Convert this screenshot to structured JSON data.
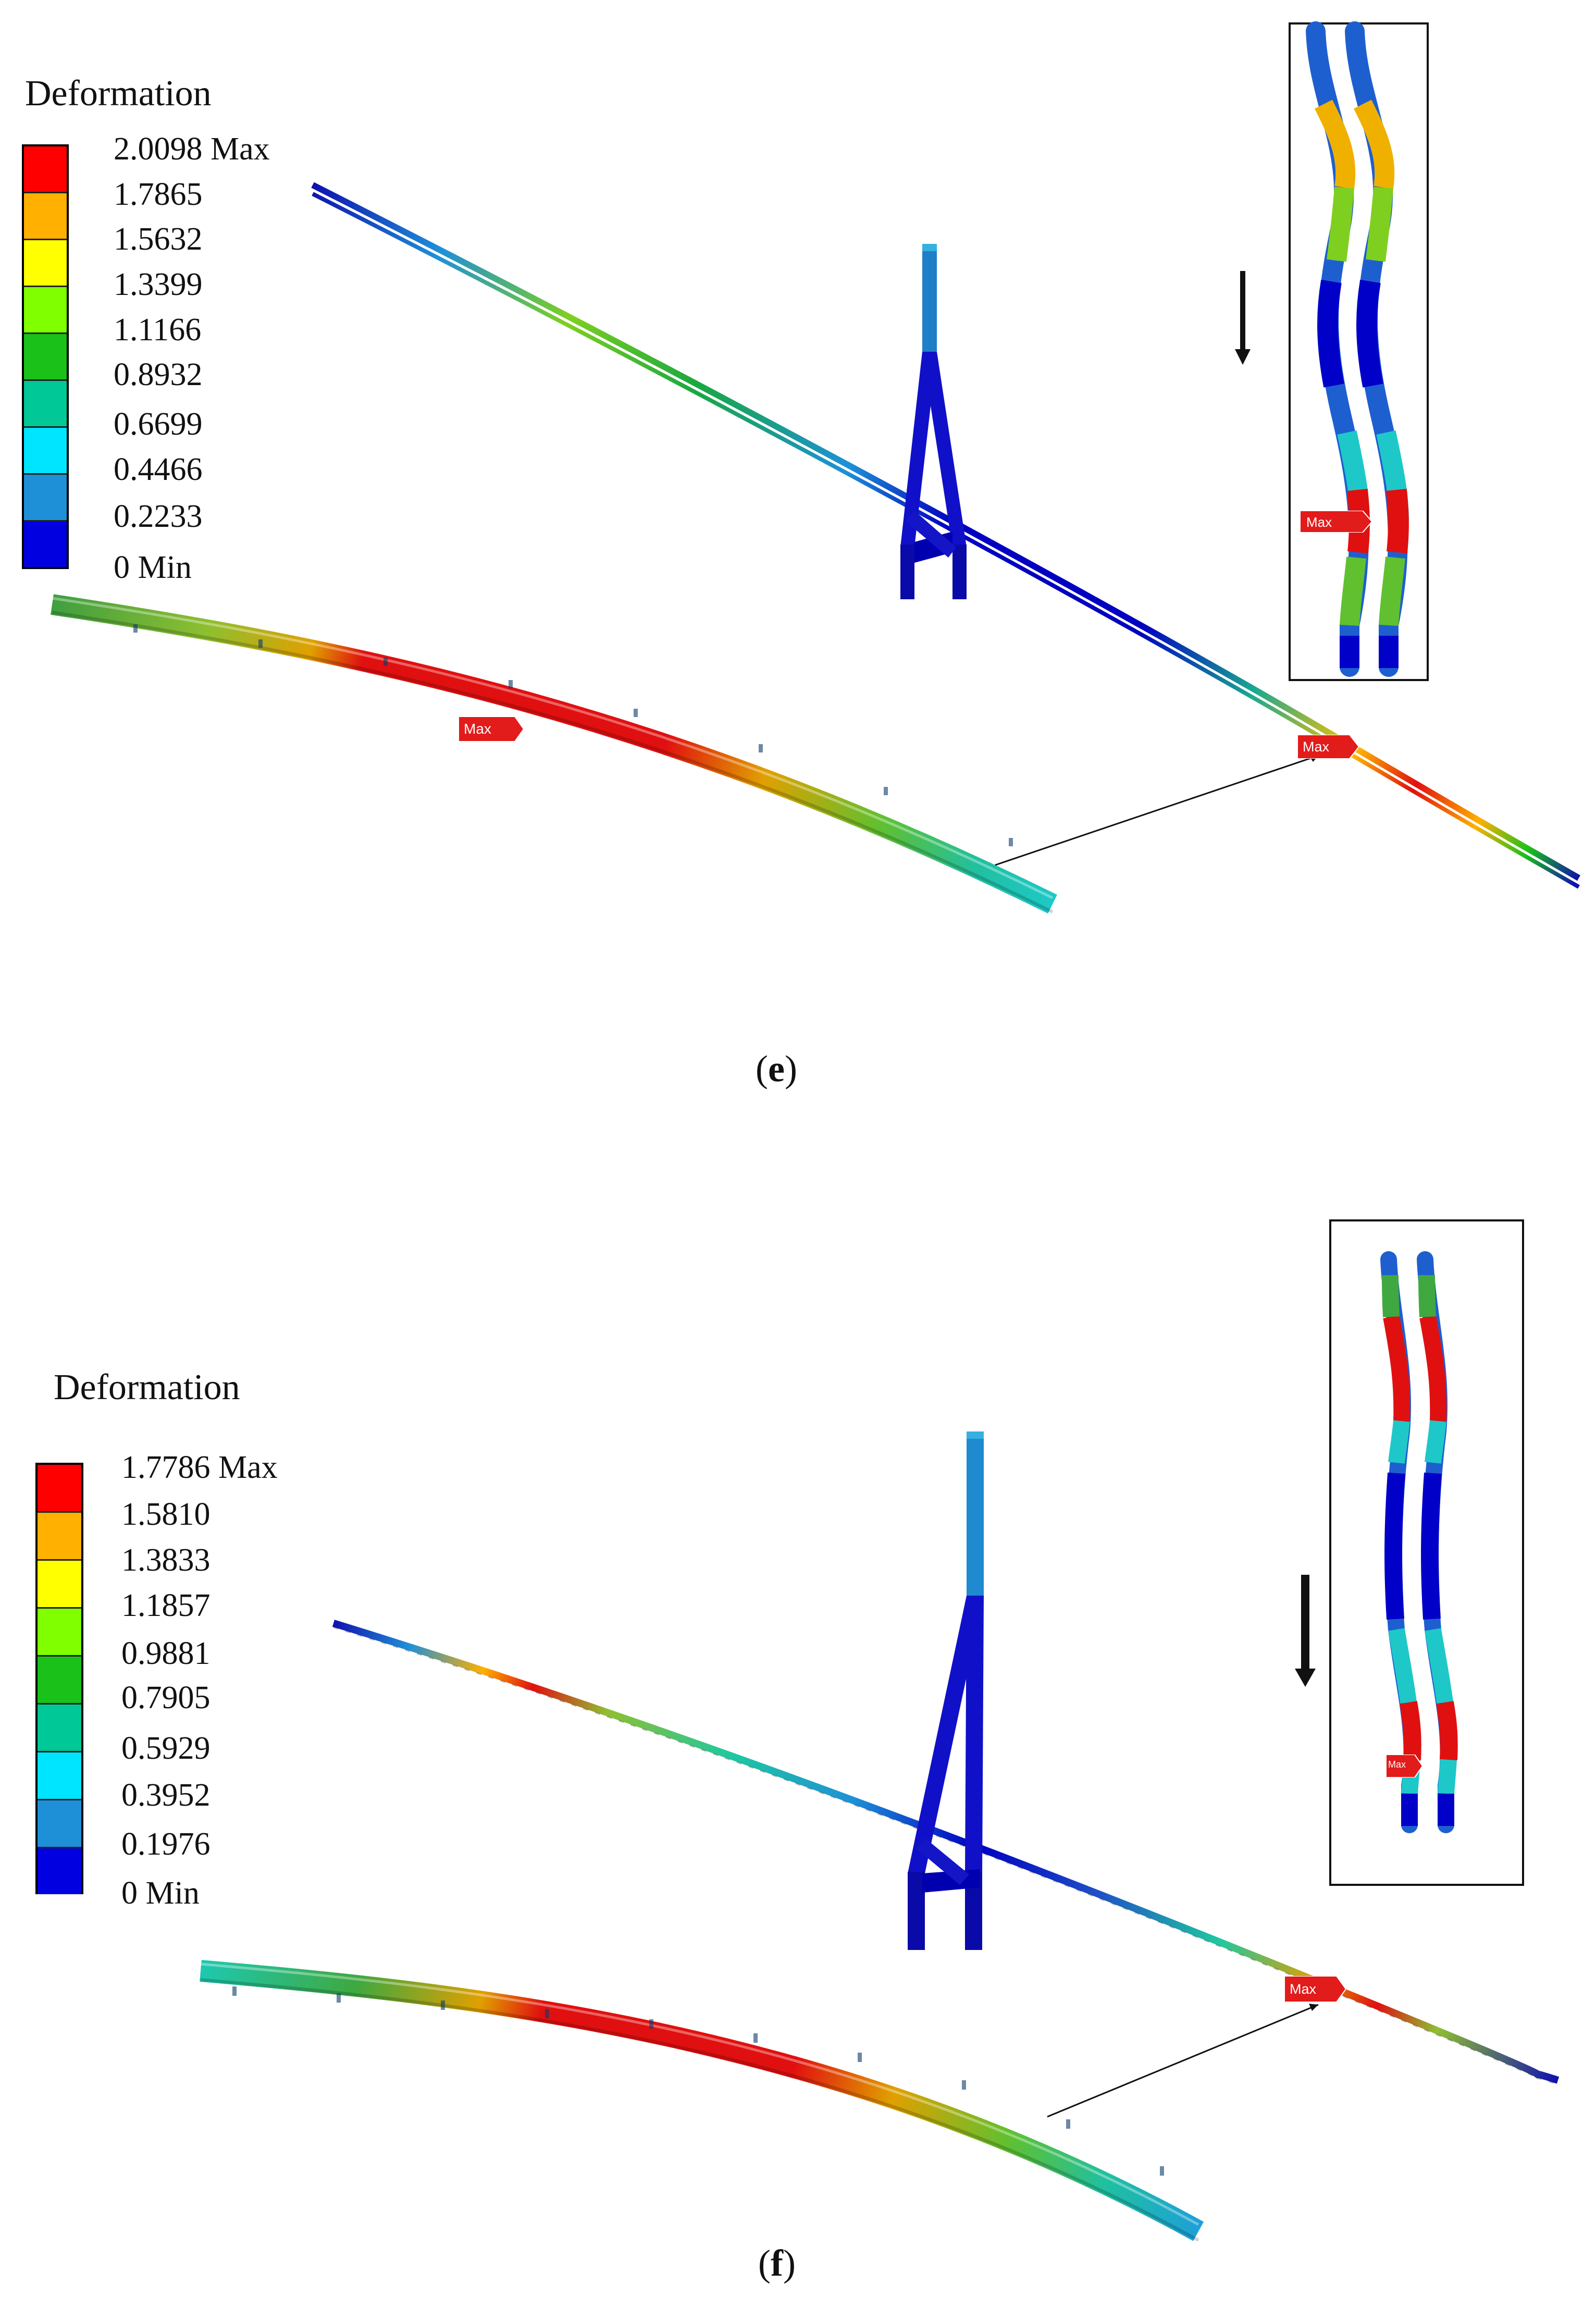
{
  "colors": {
    "bands": [
      "#0000e0",
      "#1e90d8",
      "#00e5ff",
      "#00c896",
      "#19c119",
      "#7fff00",
      "#ffff00",
      "#ffb000",
      "#ff0000"
    ],
    "max_tag": "#e21b1b",
    "frame": "#111111"
  },
  "panels": [
    {
      "id": "e",
      "caption_letter": "e",
      "legend": {
        "title": "Deformation",
        "labels": [
          "2.0098 Max",
          "1.7865",
          "1.5632",
          "1.3399",
          "1.1166",
          "0.8932",
          "0.6699",
          "0.4466",
          "0.2233",
          "0 Min"
        ]
      },
      "max_tag_main": "Max",
      "max_tag_inset": "Max",
      "max_tag_detail": "Max"
    },
    {
      "id": "f",
      "caption_letter": "f",
      "legend": {
        "title": "Deformation",
        "labels": [
          "1.7786 Max",
          "1.5810",
          "1.3833",
          "1.1857",
          "0.9881",
          "0.7905",
          "0.5929",
          "0.3952",
          "0.1976",
          "0 Min"
        ]
      },
      "max_tag_main": "Max",
      "max_tag_inset": "Max",
      "max_tag_detail": "Max"
    }
  ]
}
